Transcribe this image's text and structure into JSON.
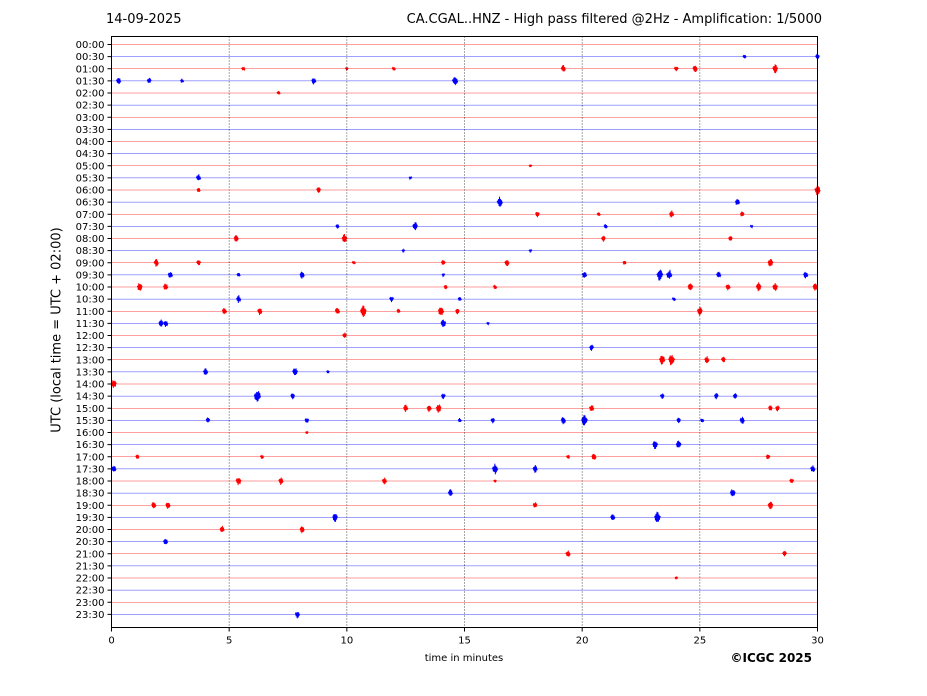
{
  "header": {
    "date": "14-09-2025",
    "title": "CA.CGAL..HNZ - High pass filtered @2Hz - Amplification: 1/5000"
  },
  "footer": {
    "copyright": "©ICGC 2025"
  },
  "chart_data": {
    "type": "line",
    "title": "CA.CGAL..HNZ - High pass filtered @2Hz - Amplification: 1/5000",
    "xlabel": "time in minutes",
    "ylabel": "UTC (local time = UTC + 02:00)",
    "xlim": [
      0,
      30
    ],
    "xticks": [
      0,
      5,
      10,
      15,
      20,
      25,
      30
    ],
    "grid": "vertical dotted at x ticks",
    "colors": {
      "even_row": "#ff0000",
      "odd_row": "#0000ff"
    },
    "rows": [
      "00:00",
      "00:30",
      "01:00",
      "01:30",
      "02:00",
      "02:30",
      "03:00",
      "03:30",
      "04:00",
      "04:30",
      "05:00",
      "05:30",
      "06:00",
      "06:30",
      "07:00",
      "07:30",
      "08:00",
      "08:30",
      "09:00",
      "09:30",
      "10:00",
      "10:30",
      "11:00",
      "11:30",
      "12:00",
      "12:30",
      "13:00",
      "13:30",
      "14:00",
      "14:30",
      "15:00",
      "15:30",
      "16:00",
      "16:30",
      "17:00",
      "17:30",
      "18:00",
      "18:30",
      "19:00",
      "19:30",
      "20:00",
      "20:30",
      "21:00",
      "21:30",
      "22:00",
      "22:30",
      "23:00",
      "23:30"
    ],
    "events": [
      [],
      [
        [
          26.9,
          0.3
        ],
        [
          30,
          0.4
        ]
      ],
      [
        [
          5.6,
          0.3
        ],
        [
          10,
          0.2
        ],
        [
          12,
          0.3
        ],
        [
          19.2,
          0.5
        ],
        [
          24,
          0.4
        ],
        [
          24.8,
          0.5
        ],
        [
          28.2,
          0.6
        ]
      ],
      [
        [
          0.3,
          0.5
        ],
        [
          1.6,
          0.4
        ],
        [
          3,
          0.3
        ],
        [
          8.6,
          0.5
        ],
        [
          14.6,
          0.7
        ]
      ],
      [
        [
          7.1,
          0.3
        ]
      ],
      [],
      [],
      [],
      [],
      [],
      [
        [
          17.8,
          0.2
        ]
      ],
      [
        [
          3.7,
          0.5
        ],
        [
          12.7,
          0.2
        ]
      ],
      [
        [
          3.7,
          0.3
        ],
        [
          8.8,
          0.4
        ],
        [
          30,
          0.7
        ]
      ],
      [
        [
          16.5,
          0.7
        ],
        [
          26.6,
          0.5
        ]
      ],
      [
        [
          18.1,
          0.4
        ],
        [
          20.7,
          0.3
        ],
        [
          23.8,
          0.5
        ],
        [
          26.8,
          0.4
        ]
      ],
      [
        [
          9.6,
          0.3
        ],
        [
          12.9,
          0.6
        ],
        [
          21,
          0.3
        ],
        [
          27.2,
          0.2
        ]
      ],
      [
        [
          5.3,
          0.5
        ],
        [
          9.9,
          0.6
        ],
        [
          20.9,
          0.4
        ],
        [
          26.3,
          0.4
        ]
      ],
      [
        [
          12.4,
          0.2
        ],
        [
          17.8,
          0.2
        ]
      ],
      [
        [
          1.9,
          0.5
        ],
        [
          3.7,
          0.4
        ],
        [
          10.3,
          0.3
        ],
        [
          14.1,
          0.4
        ],
        [
          16.8,
          0.5
        ],
        [
          21.8,
          0.3
        ],
        [
          28,
          0.6
        ]
      ],
      [
        [
          2.5,
          0.5
        ],
        [
          5.4,
          0.3
        ],
        [
          8.1,
          0.5
        ],
        [
          14.1,
          0.2
        ],
        [
          20.1,
          0.5
        ],
        [
          23.3,
          0.8
        ],
        [
          23.7,
          0.7
        ],
        [
          25.8,
          0.5
        ],
        [
          29.5,
          0.5
        ]
      ],
      [
        [
          1.2,
          0.6
        ],
        [
          2.3,
          0.5
        ],
        [
          14.2,
          0.3
        ],
        [
          16.3,
          0.3
        ],
        [
          24.6,
          0.6
        ],
        [
          26.2,
          0.5
        ],
        [
          27.5,
          0.6
        ],
        [
          28.2,
          0.6
        ],
        [
          29.9,
          0.5
        ]
      ],
      [
        [
          5.4,
          0.5
        ],
        [
          11.9,
          0.4
        ],
        [
          14.8,
          0.3
        ],
        [
          23.9,
          0.3
        ]
      ],
      [
        [
          4.8,
          0.5
        ],
        [
          6.3,
          0.5
        ],
        [
          9.6,
          0.5
        ],
        [
          10.7,
          0.8
        ],
        [
          12.2,
          0.3
        ],
        [
          14.0,
          0.7
        ],
        [
          14.7,
          0.4
        ],
        [
          25,
          0.6
        ]
      ],
      [
        [
          2.1,
          0.5
        ],
        [
          2.3,
          0.5
        ],
        [
          14.1,
          0.6
        ],
        [
          16,
          0.2
        ]
      ],
      [
        [
          9.9,
          0.4
        ]
      ],
      [
        [
          20.4,
          0.4
        ]
      ],
      [
        [
          23.4,
          0.7
        ],
        [
          23.8,
          0.8
        ],
        [
          25.3,
          0.5
        ],
        [
          26,
          0.4
        ]
      ],
      [
        [
          4,
          0.5
        ],
        [
          7.8,
          0.6
        ],
        [
          9.2,
          0.2
        ]
      ],
      [
        [
          0.1,
          0.6
        ]
      ],
      [
        [
          6.2,
          0.9
        ],
        [
          7.7,
          0.4
        ],
        [
          14.1,
          0.4
        ],
        [
          23.4,
          0.4
        ],
        [
          25.7,
          0.4
        ],
        [
          26.5,
          0.4
        ]
      ],
      [
        [
          12.5,
          0.5
        ],
        [
          13.5,
          0.5
        ],
        [
          13.9,
          0.6
        ],
        [
          20.4,
          0.5
        ],
        [
          28,
          0.4
        ],
        [
          28.3,
          0.4
        ]
      ],
      [
        [
          4.1,
          0.4
        ],
        [
          8.3,
          0.4
        ],
        [
          14.8,
          0.3
        ],
        [
          16.2,
          0.4
        ],
        [
          19.2,
          0.5
        ],
        [
          20.1,
          0.8
        ],
        [
          24.1,
          0.4
        ],
        [
          25.1,
          0.3
        ],
        [
          26.8,
          0.5
        ]
      ],
      [
        [
          8.3,
          0.2
        ]
      ],
      [
        [
          23.1,
          0.6
        ],
        [
          24.1,
          0.6
        ]
      ],
      [
        [
          1.1,
          0.3
        ],
        [
          6.4,
          0.3
        ],
        [
          19.4,
          0.3
        ],
        [
          20.5,
          0.5
        ],
        [
          27.9,
          0.4
        ]
      ],
      [
        [
          0.1,
          0.5
        ],
        [
          16.3,
          0.7
        ],
        [
          18,
          0.5
        ],
        [
          29.8,
          0.5
        ]
      ],
      [
        [
          5.4,
          0.6
        ],
        [
          7.2,
          0.5
        ],
        [
          11.6,
          0.5
        ],
        [
          16.3,
          0.2
        ],
        [
          28.9,
          0.4
        ]
      ],
      [
        [
          14.4,
          0.5
        ],
        [
          26.4,
          0.6
        ]
      ],
      [
        [
          1.8,
          0.5
        ],
        [
          2.4,
          0.5
        ],
        [
          18,
          0.4
        ],
        [
          28,
          0.6
        ]
      ],
      [
        [
          9.5,
          0.6
        ],
        [
          21.3,
          0.5
        ],
        [
          23.2,
          0.8
        ]
      ],
      [
        [
          4.7,
          0.5
        ],
        [
          8.1,
          0.5
        ]
      ],
      [
        [
          2.3,
          0.5
        ]
      ],
      [
        [
          19.4,
          0.5
        ],
        [
          28.6,
          0.4
        ]
      ],
      [],
      [
        [
          24,
          0.2
        ]
      ],
      [],
      [],
      [
        [
          7.9,
          0.5
        ]
      ]
    ]
  }
}
